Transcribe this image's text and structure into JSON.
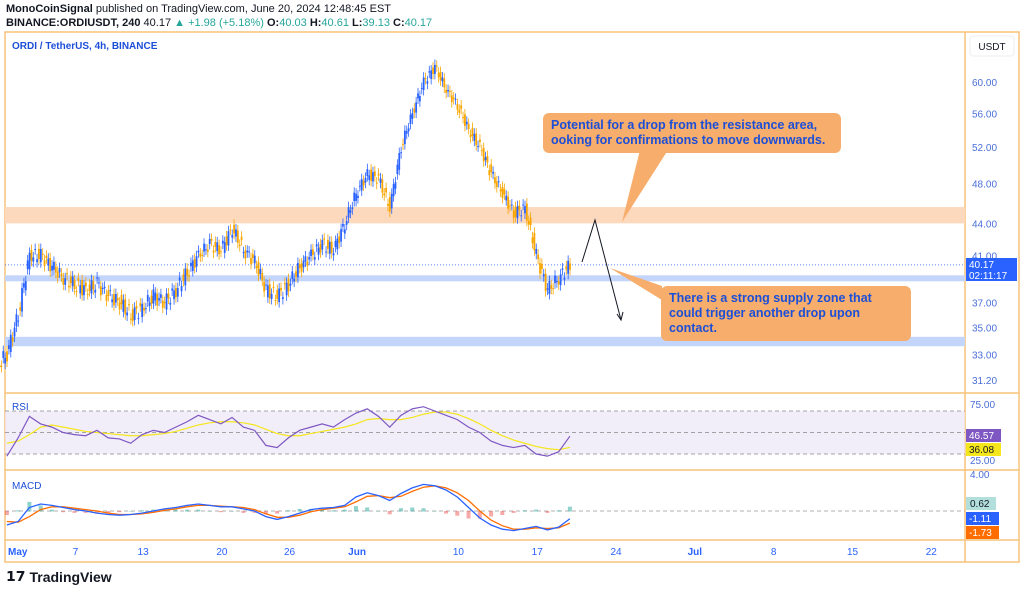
{
  "header": {
    "publisher": "MonoCoinSignal",
    "published_text": "published on TradingView.com, June 20, 2024 12:48:45 EST",
    "symbol": "BINANCE:ORDIUSDT, 240",
    "last": "40.17",
    "change": "+1.98 (+5.18%)",
    "o_label": "O:",
    "o": "40.03",
    "h_label": "H:",
    "h": "40.61",
    "l_label": "L:",
    "l": "39.13",
    "c_label": "C:",
    "c": "40.17"
  },
  "chart_title": "ORDI / TetherUS, 4h, BINANCE",
  "currency": "USDT",
  "price_labels": {
    "last": "40.17",
    "countdown": "02:11:17"
  },
  "rsi": {
    "label": "RSI",
    "value": "46.57",
    "ma": "36.08",
    "ticks": [
      "75.00",
      "25.00"
    ]
  },
  "macd": {
    "label": "MACD",
    "hist": "0.62",
    "macd": "-1.11",
    "signal": "-1.73",
    "ticks": [
      "4.00"
    ]
  },
  "annotations": [
    "Potential for a drop from the resistance area, ooking for confirmations to move downwards.",
    "There is a strong supply zone that could trigger another drop upon contact."
  ],
  "logo": "TradingView",
  "colors": {
    "up": "#2962ff",
    "down": "#f7a600",
    "resistance_zone": "#fcd9bd",
    "support_zone": "#c4d5fb",
    "annotation": "#f7ad6b",
    "frame": "#f7c27a"
  },
  "chart_data": {
    "type": "candlestick",
    "y_scale": "log",
    "y_ticks": [
      60,
      56,
      52,
      48,
      44,
      41,
      37,
      35,
      33,
      31.2
    ],
    "x_ticks": [
      "May",
      "7",
      "13",
      "20",
      "26",
      "Jun",
      "10",
      "17",
      "24",
      "Jul",
      "8",
      "15",
      "22"
    ],
    "dates": [
      "May 1",
      "May 2",
      "May 3",
      "May 4",
      "May 5",
      "May 6",
      "May 7",
      "May 8",
      "May 9",
      "May 10",
      "May 11",
      "May 12",
      "May 13",
      "May 14",
      "May 15",
      "May 16",
      "May 17",
      "May 18",
      "May 19",
      "May 20",
      "May 21",
      "May 22",
      "May 23",
      "May 24",
      "May 25",
      "May 26",
      "May 27",
      "May 28",
      "May 29",
      "May 30",
      "May 31",
      "Jun 1",
      "Jun 2",
      "Jun 3",
      "Jun 4",
      "Jun 5",
      "Jun 6",
      "Jun 7",
      "Jun 8",
      "Jun 9",
      "Jun 10",
      "Jun 11",
      "Jun 12",
      "Jun 13",
      "Jun 14",
      "Jun 15",
      "Jun 16",
      "Jun 17",
      "Jun 18",
      "Jun 19",
      "Jun 20"
    ],
    "close": [
      33,
      36,
      41,
      41,
      40,
      39,
      38.5,
      38,
      38.5,
      37.5,
      37,
      36,
      36.5,
      37.5,
      37,
      38,
      39.5,
      41,
      42,
      41.5,
      43.5,
      41.5,
      40.5,
      38,
      37.5,
      38.5,
      40,
      41,
      42,
      41.5,
      44,
      47,
      49,
      48.5,
      45.5,
      52,
      56,
      60,
      62,
      59,
      57,
      54,
      52,
      49,
      47,
      45,
      45.5,
      41,
      38,
      39,
      40.17
    ],
    "resistance_zone": [
      44,
      45.6
    ],
    "support_line": 39,
    "support_zone": [
      33.6,
      34.3
    ],
    "rsi": [
      28,
      45,
      65,
      58,
      55,
      50,
      48,
      47,
      52,
      45,
      44,
      40,
      48,
      52,
      50,
      55,
      60,
      66,
      62,
      58,
      64,
      55,
      52,
      38,
      36,
      45,
      52,
      55,
      58,
      55,
      62,
      68,
      72,
      65,
      55,
      66,
      72,
      74,
      70,
      66,
      62,
      55,
      50,
      42,
      38,
      36,
      38,
      30,
      28,
      32,
      46.57
    ],
    "rsi_ma": [
      40,
      42,
      48,
      55,
      57,
      55,
      53,
      51,
      50,
      49,
      48,
      47,
      47,
      48,
      49,
      51,
      54,
      57,
      59,
      60,
      60,
      59,
      57,
      53,
      49,
      47,
      47,
      49,
      51,
      53,
      55,
      58,
      62,
      63,
      62,
      62,
      64,
      67,
      69,
      69,
      67,
      63,
      58,
      52,
      47,
      43,
      40,
      37,
      35,
      34,
      36.08
    ],
    "macd_line": [
      -2,
      -1.5,
      0.5,
      1,
      0.8,
      0.5,
      0.2,
      0,
      -0.3,
      -0.5,
      -0.6,
      -0.5,
      -0.3,
      0,
      0.3,
      0.5,
      0.8,
      1,
      0.8,
      0.6,
      0.6,
      0.3,
      0,
      -0.8,
      -1.2,
      -0.8,
      -0.3,
      0.2,
      0.4,
      0.5,
      0.8,
      2,
      2.6,
      2.2,
      1.5,
      2.5,
      3.3,
      3.8,
      3.6,
      3,
      2,
      0.5,
      -1,
      -2,
      -2.6,
      -2.8,
      -2.5,
      -2.2,
      -2.7,
      -2.3,
      -1.11
    ],
    "signal_line": [
      -1.5,
      -1.6,
      -0.8,
      0.2,
      0.6,
      0.6,
      0.4,
      0.2,
      0,
      -0.3,
      -0.5,
      -0.5,
      -0.4,
      -0.2,
      0.1,
      0.3,
      0.6,
      0.8,
      0.8,
      0.7,
      0.6,
      0.5,
      0.2,
      -0.4,
      -0.9,
      -0.9,
      -0.6,
      -0.1,
      0.2,
      0.4,
      0.6,
      1.3,
      2.1,
      2.2,
      1.9,
      2.1,
      2.8,
      3.4,
      3.6,
      3.3,
      2.6,
      1.5,
      0,
      -1.3,
      -2.1,
      -2.6,
      -2.6,
      -2.4,
      -2.5,
      -2.4,
      -1.73
    ]
  }
}
